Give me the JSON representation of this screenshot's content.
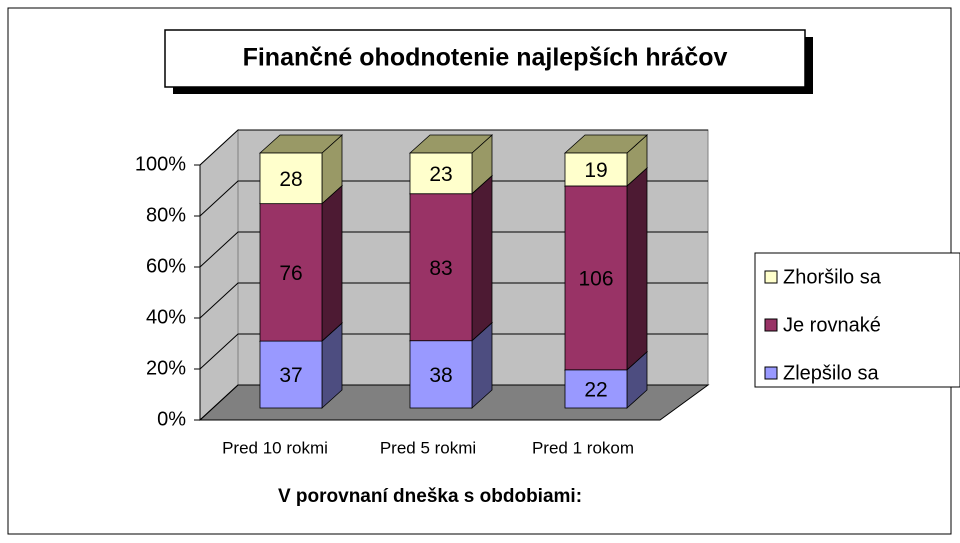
{
  "chart_data": {
    "type": "bar",
    "stacking": "percent",
    "title": "Finančné ohodnotenie najlepších hráčov",
    "x_label": "V porovnaní dneška s obdobiami:",
    "categories": [
      "Pred 10 rokmi",
      "Pred 5 rokmi",
      "Pred 1 rokom"
    ],
    "series": [
      {
        "name": "Zlepšilo sa",
        "color": "#9999ff",
        "side_color": "#4d4d80",
        "values": [
          37,
          38,
          22
        ]
      },
      {
        "name": "Je rovnaké",
        "color": "#993366",
        "side_color": "#4d1a33",
        "values": [
          76,
          83,
          106
        ]
      },
      {
        "name": "Zhoršilo sa",
        "color": "#ffffcc",
        "side_color": "#999966",
        "values": [
          28,
          23,
          19
        ]
      }
    ],
    "ylim": [
      0,
      100
    ],
    "yticks": [
      {
        "value": 0,
        "label": "0%"
      },
      {
        "value": 20,
        "label": "20%"
      },
      {
        "value": 40,
        "label": "40%"
      },
      {
        "value": 60,
        "label": "60%"
      },
      {
        "value": 80,
        "label": "80%"
      },
      {
        "value": 100,
        "label": "100%"
      }
    ],
    "grid": true,
    "legend": "right"
  }
}
